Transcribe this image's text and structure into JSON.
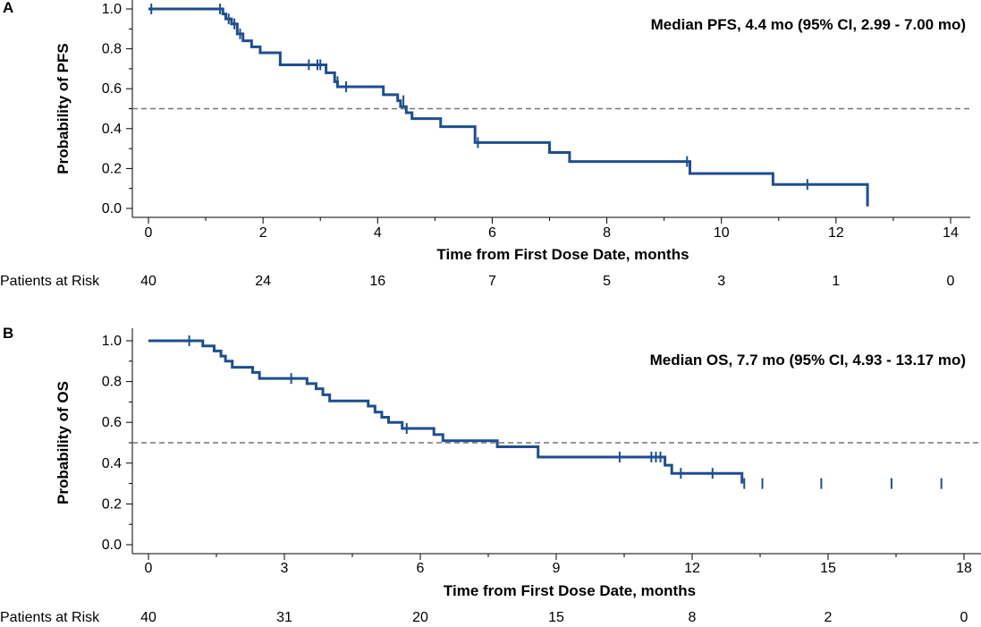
{
  "chart_data": [
    {
      "type": "line",
      "panel_label": "A",
      "title": "",
      "annotation": "Median PFS, 4.4 mo (95% CI, 2.99 - 7.00 mo)",
      "xlabel": "Time from First Dose Date, months",
      "ylabel": "Probability of PFS",
      "xlim": [
        0,
        14
      ],
      "ylim": [
        0,
        1.0
      ],
      "x_ticks": [
        0,
        2,
        4,
        6,
        8,
        10,
        12,
        14
      ],
      "x_tick_labels": [
        "0",
        "2",
        "4",
        "6",
        "8",
        "10",
        "12",
        "14"
      ],
      "y_ticks": [
        0,
        0.2,
        0.4,
        0.6,
        0.8,
        1.0
      ],
      "y_tick_labels": [
        "0.0",
        "0.2",
        "0.4",
        "0.6",
        "0.8",
        "1.0"
      ],
      "reference_line": 0.5,
      "risk_label": "Patients at Risk",
      "risk_times": [
        0,
        2,
        4,
        6,
        8,
        10,
        12,
        14
      ],
      "risk_counts": [
        "40",
        "24",
        "16",
        "7",
        "5",
        "3",
        "1",
        "0"
      ],
      "series": [
        {
          "name": "PFS",
          "color": "#1f4e8f",
          "steps": [
            [
              0,
              1.0
            ],
            [
              1.3,
              0.975
            ],
            [
              1.35,
              0.95
            ],
            [
              1.45,
              0.925
            ],
            [
              1.55,
              0.875
            ],
            [
              1.65,
              0.84
            ],
            [
              1.8,
              0.81
            ],
            [
              1.95,
              0.78
            ],
            [
              2.3,
              0.72
            ],
            [
              3.1,
              0.68
            ],
            [
              3.25,
              0.635
            ],
            [
              3.3,
              0.61
            ],
            [
              4.1,
              0.57
            ],
            [
              4.35,
              0.54
            ],
            [
              4.4,
              0.51
            ],
            [
              4.5,
              0.48
            ],
            [
              4.6,
              0.45
            ],
            [
              5.1,
              0.41
            ],
            [
              5.7,
              0.33
            ],
            [
              7.0,
              0.28
            ],
            [
              7.35,
              0.235
            ],
            [
              9.45,
              0.175
            ],
            [
              10.9,
              0.12
            ],
            [
              12.55,
              0.01
            ]
          ],
          "censored": [
            [
              0.05,
              1.0
            ],
            [
              1.25,
              1.0
            ],
            [
              1.4,
              0.95
            ],
            [
              1.5,
              0.925
            ],
            [
              1.6,
              0.875
            ],
            [
              2.8,
              0.72
            ],
            [
              2.95,
              0.72
            ],
            [
              3.0,
              0.72
            ],
            [
              3.3,
              0.635
            ],
            [
              3.45,
              0.61
            ],
            [
              4.45,
              0.54
            ],
            [
              5.75,
              0.33
            ],
            [
              9.4,
              0.235
            ],
            [
              11.5,
              0.12
            ]
          ]
        }
      ]
    },
    {
      "type": "line",
      "panel_label": "B",
      "title": "",
      "annotation": "Median OS, 7.7 mo (95% CI, 4.93 - 13.17 mo)",
      "xlabel": "Time from First Dose Date, months",
      "ylabel": "Probability of OS",
      "xlim": [
        0,
        18
      ],
      "ylim": [
        0,
        1.0
      ],
      "x_ticks": [
        0,
        3,
        6,
        9,
        12,
        15,
        18
      ],
      "x_tick_labels": [
        "0",
        "3",
        "6",
        "9",
        "12",
        "15",
        "18"
      ],
      "y_ticks": [
        0,
        0.2,
        0.4,
        0.6,
        0.8,
        1.0
      ],
      "y_tick_labels": [
        "0.0",
        "0.2",
        "0.4",
        "0.6",
        "0.8",
        "1.0"
      ],
      "reference_line": 0.5,
      "risk_label": "Patients at Risk",
      "risk_times": [
        0,
        3,
        6,
        9,
        12,
        15,
        18
      ],
      "risk_counts": [
        "40",
        "31",
        "20",
        "15",
        "8",
        "2",
        "0"
      ],
      "series": [
        {
          "name": "OS",
          "color": "#1f4e8f",
          "steps": [
            [
              0,
              1.0
            ],
            [
              1.2,
              0.975
            ],
            [
              1.45,
              0.95
            ],
            [
              1.6,
              0.925
            ],
            [
              1.7,
              0.9
            ],
            [
              1.85,
              0.87
            ],
            [
              2.3,
              0.845
            ],
            [
              2.45,
              0.815
            ],
            [
              3.3,
              0.815
            ],
            [
              3.5,
              0.79
            ],
            [
              3.7,
              0.765
            ],
            [
              3.85,
              0.735
            ],
            [
              4.0,
              0.705
            ],
            [
              4.85,
              0.68
            ],
            [
              5.0,
              0.65
            ],
            [
              5.15,
              0.625
            ],
            [
              5.3,
              0.6
            ],
            [
              5.6,
              0.57
            ],
            [
              6.3,
              0.54
            ],
            [
              6.5,
              0.51
            ],
            [
              7.7,
              0.48
            ],
            [
              8.6,
              0.43
            ],
            [
              11.4,
              0.39
            ],
            [
              11.55,
              0.35
            ],
            [
              12.35,
              0.35
            ],
            [
              13.1,
              0.3
            ]
          ],
          "censored": [
            [
              0.9,
              1.0
            ],
            [
              3.15,
              0.815
            ],
            [
              5.7,
              0.57
            ],
            [
              10.4,
              0.43
            ],
            [
              11.1,
              0.43
            ],
            [
              11.2,
              0.43
            ],
            [
              11.3,
              0.43
            ],
            [
              11.75,
              0.35
            ],
            [
              12.45,
              0.35
            ],
            [
              13.15,
              0.3
            ],
            [
              13.55,
              0.3
            ],
            [
              14.85,
              0.3
            ],
            [
              16.4,
              0.3
            ],
            [
              17.5,
              0.3
            ]
          ]
        }
      ]
    }
  ]
}
